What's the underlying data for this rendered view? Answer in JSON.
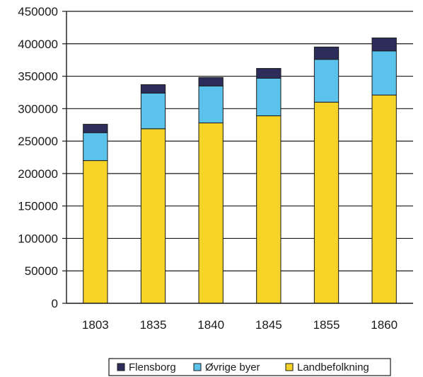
{
  "chart_data": {
    "type": "bar",
    "stacked": true,
    "categories": [
      "1803",
      "1835",
      "1840",
      "1845",
      "1855",
      "1860"
    ],
    "series": [
      {
        "name": "Landbefolkning",
        "color": "#f5d327",
        "values": [
          220000,
          269000,
          278000,
          289000,
          310000,
          321000
        ]
      },
      {
        "name": "Øvrige byer",
        "color": "#5bc2ec",
        "values": [
          43000,
          55000,
          57000,
          58000,
          66000,
          68000
        ]
      },
      {
        "name": "Flensborg",
        "color": "#2d2d5c",
        "values": [
          13000,
          13000,
          13000,
          15000,
          19000,
          20000
        ]
      }
    ],
    "ylim": [
      0,
      450000
    ],
    "yticks": [
      "0",
      "50000",
      "100000",
      "150000",
      "200000",
      "250000",
      "300000",
      "350000",
      "400000",
      "450000"
    ],
    "grid": true,
    "legend": {
      "position": "bottom",
      "items": [
        "Flensborg",
        "Øvrige byer",
        "Landbefolkning"
      ]
    },
    "title": "",
    "xlabel": "",
    "ylabel": ""
  }
}
